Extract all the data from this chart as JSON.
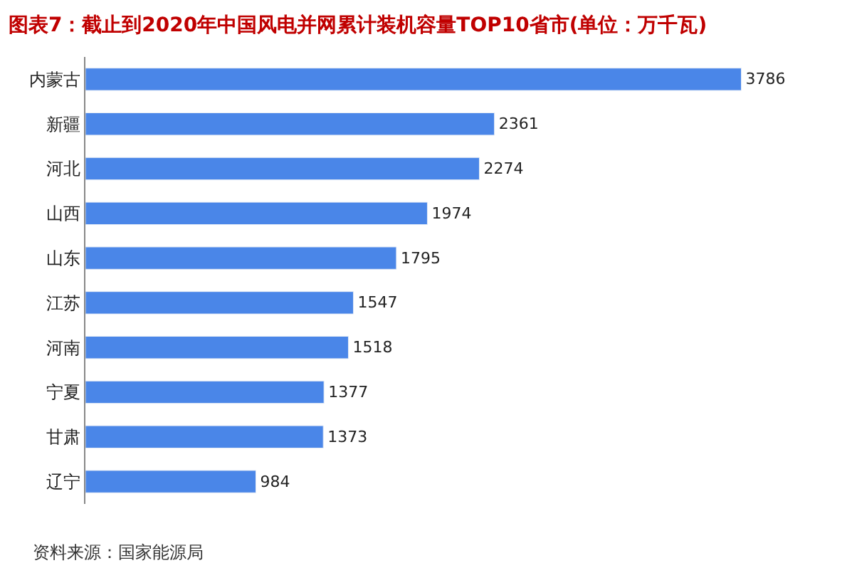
{
  "chart_data": {
    "type": "bar",
    "orientation": "horizontal",
    "title": "图表7：截止到2020年中国风电并网累计装机容量TOP10省市(单位：万千瓦)",
    "categories": [
      "内蒙古",
      "新疆",
      "河北",
      "山西",
      "山东",
      "江苏",
      "河南",
      "宁夏",
      "甘肃",
      "辽宁"
    ],
    "values": [
      3786,
      2361,
      2274,
      1974,
      1795,
      1547,
      1518,
      1377,
      1373,
      984
    ],
    "color": "#4a86e8",
    "data_labels": true,
    "tick_labels": "y",
    "legend": false,
    "annotations": [
      "资料来源：国家能源局"
    ]
  }
}
